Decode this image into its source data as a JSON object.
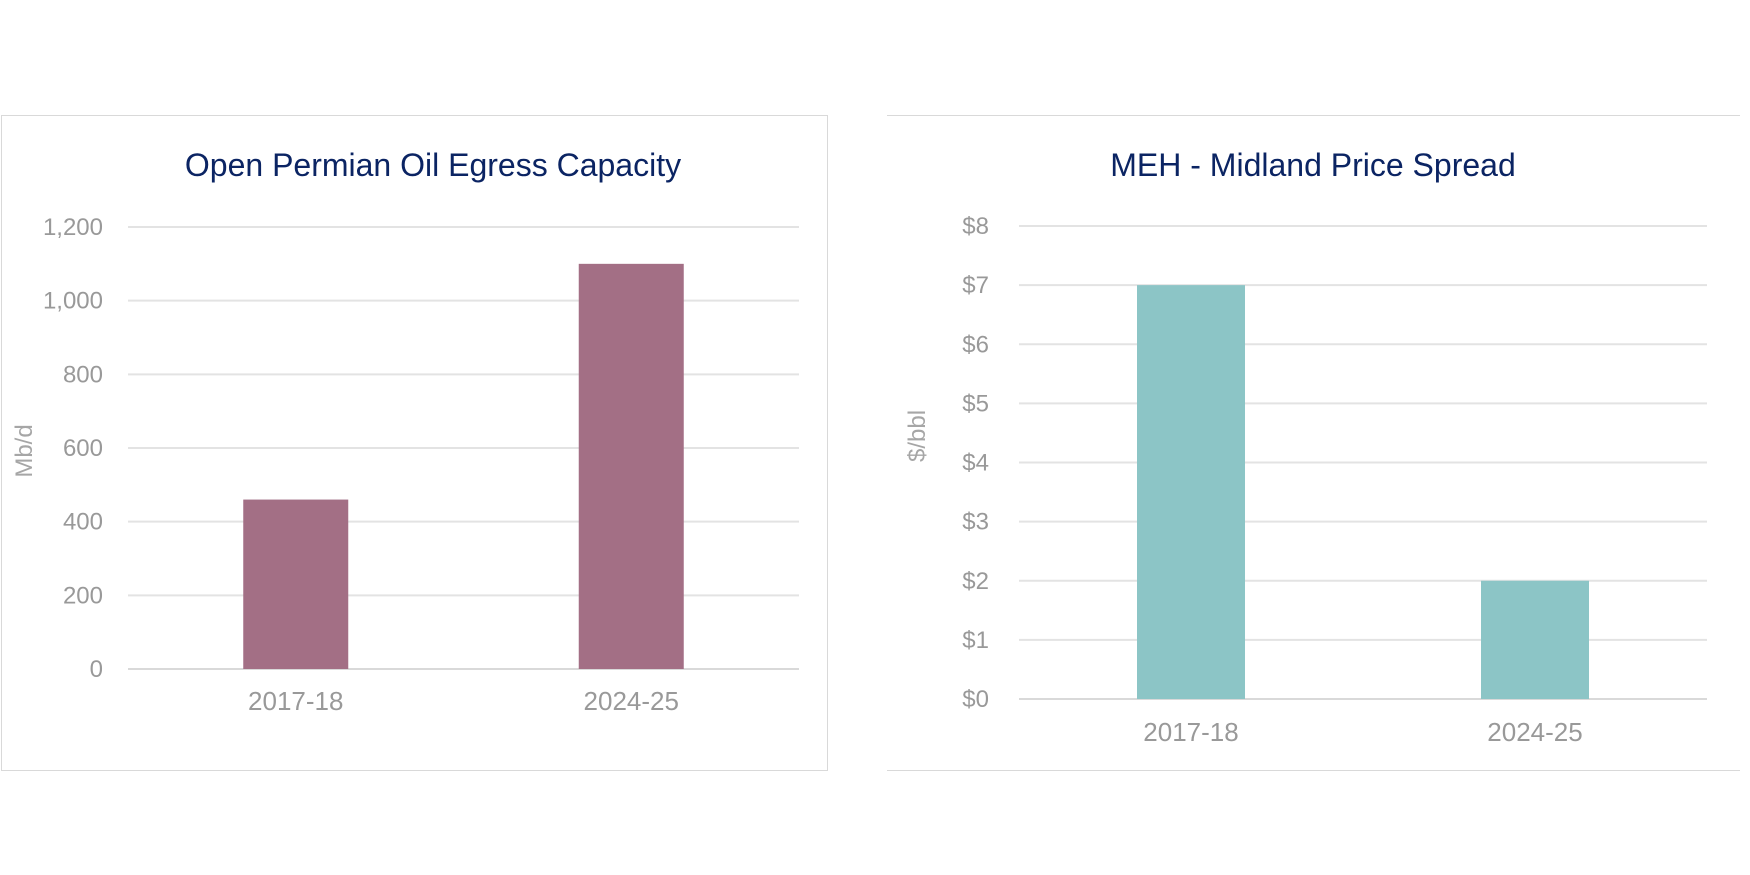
{
  "chart_data": [
    {
      "type": "bar",
      "title": "Open Permian Oil Egress Capacity",
      "ylabel": "Mb/d",
      "xlabel": "",
      "categories": [
        "2017-18",
        "2024-25"
      ],
      "values": [
        460,
        1100
      ],
      "ylim": [
        0,
        1200
      ],
      "yticks": [
        0,
        200,
        400,
        600,
        800,
        1000,
        1200
      ],
      "ytick_labels": [
        "0",
        "200",
        "400",
        "600",
        "800",
        "1,000",
        "1,200"
      ],
      "bar_color": "#a36f85",
      "grid": true,
      "legend": "none"
    },
    {
      "type": "bar",
      "title": "MEH - Midland  Price Spread",
      "ylabel": "$/bbl",
      "xlabel": "",
      "categories": [
        "2017-18",
        "2024-25"
      ],
      "values": [
        7,
        2
      ],
      "ylim": [
        0,
        8
      ],
      "yticks": [
        0,
        1,
        2,
        3,
        4,
        5,
        6,
        7,
        8
      ],
      "ytick_labels": [
        "$0",
        "$1",
        "$2",
        "$3",
        "$4",
        "$5",
        "$6",
        "$7",
        "$8"
      ],
      "bar_color": "#8cc5c6",
      "grid": true,
      "legend": "none"
    }
  ]
}
